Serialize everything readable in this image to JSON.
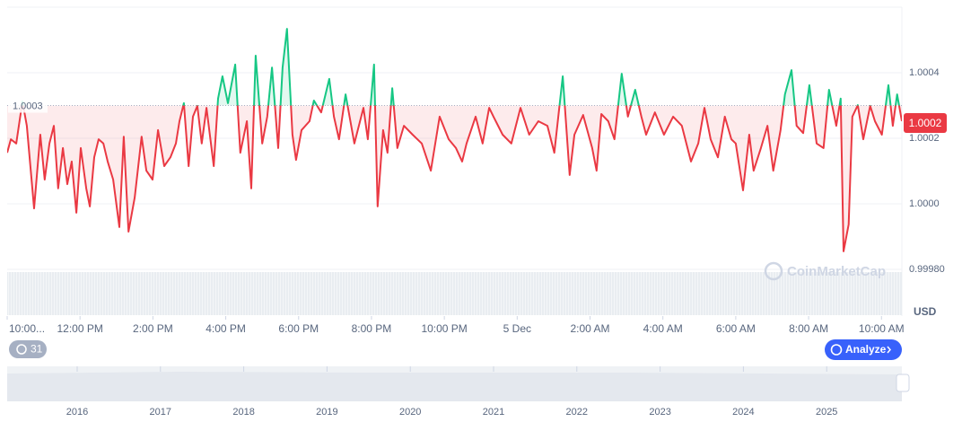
{
  "chart_data": {
    "type": "line",
    "up_color": "#16c784",
    "down_color": "#ea3943",
    "baseline": 1.0003,
    "current_price": 1.0002,
    "xlim": [
      10,
      34.56
    ],
    "ylim": [
      0.9998,
      1.0006
    ],
    "xticks": [
      {
        "value": 10,
        "label": "10:00..."
      },
      {
        "value": 12,
        "label": "12:00 PM"
      },
      {
        "value": 14,
        "label": "2:00 PM"
      },
      {
        "value": 16,
        "label": "4:00 PM"
      },
      {
        "value": 18,
        "label": "6:00 PM"
      },
      {
        "value": 20,
        "label": "8:00 PM"
      },
      {
        "value": 22,
        "label": "10:00 PM"
      },
      {
        "value": 24,
        "label": "5 Dec"
      },
      {
        "value": 26,
        "label": "2:00 AM"
      },
      {
        "value": 28,
        "label": "4:00 AM"
      },
      {
        "value": 30,
        "label": "6:00 AM"
      },
      {
        "value": 32,
        "label": "8:00 AM"
      },
      {
        "value": 34,
        "label": "10:00 AM"
      }
    ],
    "yticks": [
      {
        "value": 0.9998,
        "label": "0.99980"
      },
      {
        "value": 1.0,
        "label": "1.0000"
      },
      1.0002,
      1.0004
    ],
    "grid": true,
    "x": [
      10.0,
      10.1,
      10.25,
      10.42,
      10.54,
      10.74,
      10.91,
      11.03,
      11.16,
      11.28,
      11.4,
      11.53,
      11.65,
      11.77,
      11.9,
      12.02,
      12.17,
      12.27,
      12.39,
      12.51,
      12.64,
      12.76,
      12.91,
      13.08,
      13.2,
      13.33,
      13.5,
      13.69,
      13.82,
      13.99,
      14.14,
      14.31,
      14.48,
      14.63,
      14.73,
      14.85,
      14.98,
      15.1,
      15.22,
      15.34,
      15.47,
      15.67,
      15.79,
      15.91,
      16.06,
      16.26,
      16.4,
      16.58,
      16.7,
      16.82,
      17.0,
      17.14,
      17.27,
      17.44,
      17.56,
      17.68,
      17.83,
      17.93,
      18.08,
      18.3,
      18.42,
      18.62,
      18.84,
      18.97,
      19.11,
      19.29,
      19.53,
      19.78,
      19.9,
      20.07,
      20.17,
      20.32,
      20.44,
      20.57,
      20.71,
      20.89,
      21.13,
      21.38,
      21.63,
      21.87,
      22.12,
      22.32,
      22.49,
      22.61,
      22.86,
      23.05,
      23.23,
      23.35,
      23.6,
      23.84,
      24.09,
      24.33,
      24.58,
      24.83,
      25.02,
      25.25,
      25.44,
      25.57,
      25.81,
      26.06,
      26.18,
      26.31,
      26.5,
      26.67,
      26.87,
      27.04,
      27.24,
      27.41,
      27.54,
      27.78,
      28.03,
      28.28,
      28.52,
      28.77,
      28.97,
      29.14,
      29.31,
      29.51,
      29.7,
      29.88,
      30.0,
      30.2,
      30.37,
      30.49,
      30.69,
      30.87,
      31.03,
      31.23,
      31.35,
      31.53,
      31.67,
      31.85,
      32.02,
      32.22,
      32.41,
      32.56,
      32.76,
      32.88,
      32.96,
      33.1,
      33.2,
      33.35,
      33.5,
      33.69,
      33.82,
      34.01,
      34.19,
      34.31,
      34.43,
      34.56
    ],
    "values": [
      1.000156,
      1.000197,
      1.000184,
      1.000312,
      1.000238,
      0.999986,
      1.000211,
      1.000074,
      1.000184,
      1.000238,
      1.000047,
      1.00017,
      1.00006,
      1.000129,
      0.999973,
      1.00017,
      1.000047,
      0.999992,
      1.000142,
      1.000197,
      1.000184,
      1.000129,
      1.000074,
      0.999929,
      1.000205,
      0.999915,
      1.000019,
      1.000205,
      1.000101,
      1.000074,
      1.000225,
      1.000115,
      1.000142,
      1.000184,
      1.000252,
      1.000307,
      1.000115,
      1.000266,
      1.000299,
      1.000184,
      1.000293,
      1.000115,
      1.000321,
      1.000389,
      1.000307,
      1.000425,
      1.000156,
      1.000252,
      1.000047,
      1.000452,
      1.000184,
      1.000266,
      1.000416,
      1.00017,
      1.000416,
      1.000534,
      1.000211,
      1.000134,
      1.000225,
      1.000252,
      1.000315,
      1.000279,
      1.000381,
      1.000266,
      1.000197,
      1.000334,
      1.000184,
      1.000293,
      1.000197,
      1.000425,
      0.999992,
      1.000225,
      1.000156,
      1.000353,
      1.00017,
      1.000238,
      1.000211,
      1.000184,
      1.000101,
      1.000266,
      1.000197,
      1.00017,
      1.000129,
      1.000184,
      1.000266,
      1.000184,
      1.000293,
      1.000266,
      1.000211,
      1.000184,
      1.000293,
      1.000211,
      1.000252,
      1.000238,
      1.000156,
      1.000389,
      1.000088,
      1.000211,
      1.000271,
      1.00017,
      1.000101,
      1.000274,
      1.000252,
      1.000197,
      1.000397,
      1.000266,
      1.000348,
      1.000266,
      1.000211,
      1.000279,
      1.000211,
      1.000266,
      1.000238,
      1.000129,
      1.000184,
      1.000293,
      1.000197,
      1.000142,
      1.000266,
      1.000197,
      1.000184,
      1.000041,
      1.000211,
      1.000101,
      1.00017,
      1.000238,
      1.000101,
      1.000225,
      1.000334,
      1.000408,
      1.000238,
      1.000216,
      1.000362,
      1.000184,
      1.00017,
      1.000348,
      1.000238,
      1.000321,
      0.999855,
      0.999937,
      1.000266,
      1.000301,
      1.000197,
      1.000299,
      1.000252,
      1.000211,
      1.000362,
      1.000238,
      1.000334,
      1.000252
    ]
  },
  "ui": {
    "currency": "USD",
    "watermark": "CoinMarketCap",
    "badge": "31",
    "analyze_button": "Analyze",
    "navigator_labels": [
      "2016",
      "2017",
      "2018",
      "2019",
      "2020",
      "2021",
      "2022",
      "2023",
      "2024",
      "2025"
    ]
  }
}
